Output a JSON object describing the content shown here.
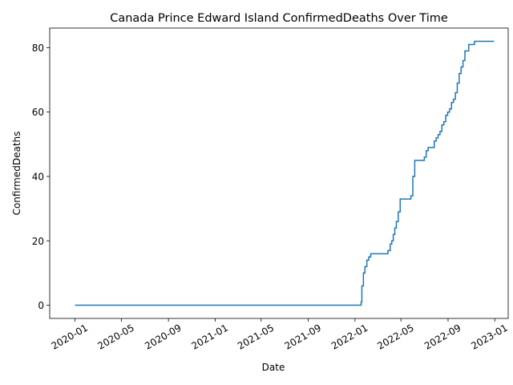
{
  "chart_data": {
    "type": "line",
    "title": "Canada Prince Edward Island ConfirmedDeaths Over Time",
    "xlabel": "Date",
    "ylabel": "ConfirmedDeaths",
    "x_tick_labels": [
      "2020-01",
      "2020-05",
      "2020-09",
      "2021-01",
      "2021-05",
      "2021-09",
      "2022-01",
      "2022-05",
      "2022-09",
      "2023-01"
    ],
    "x_tick_dates": [
      "2020-01-01",
      "2020-05-01",
      "2020-09-01",
      "2021-01-01",
      "2021-05-01",
      "2021-09-01",
      "2022-01-01",
      "2022-05-01",
      "2022-09-01",
      "2023-01-01"
    ],
    "xlim": [
      "2019-10-27",
      "2023-02-05"
    ],
    "y_ticks": [
      0,
      20,
      40,
      60,
      80
    ],
    "ylim": [
      -4.1,
      86.1
    ],
    "grid": false,
    "line_color": "#1f77b4",
    "series": [
      {
        "x": [
          "2020-01-01",
          "2022-01-17",
          "2022-01-19",
          "2022-01-23",
          "2022-01-27",
          "2022-02-01",
          "2022-02-06",
          "2022-02-11",
          "2022-02-16",
          "2022-02-21",
          "2022-03-01",
          "2022-03-15",
          "2022-03-28",
          "2022-04-03",
          "2022-04-07",
          "2022-04-11",
          "2022-04-15",
          "2022-04-19",
          "2022-04-24",
          "2022-04-29",
          "2022-05-04",
          "2022-05-08",
          "2022-05-13",
          "2022-05-27",
          "2022-06-01",
          "2022-06-06",
          "2022-06-10",
          "2022-06-26",
          "2022-07-01",
          "2022-07-06",
          "2022-07-11",
          "2022-07-16",
          "2022-07-27",
          "2022-08-01",
          "2022-08-06",
          "2022-08-11",
          "2022-08-16",
          "2022-08-21",
          "2022-08-26",
          "2022-08-31",
          "2022-09-05",
          "2022-09-10",
          "2022-09-15",
          "2022-09-20",
          "2022-09-25",
          "2022-09-30",
          "2022-10-05",
          "2022-10-10",
          "2022-10-15",
          "2022-10-20",
          "2022-10-25",
          "2022-10-30",
          "2022-11-04",
          "2022-11-09",
          "2022-11-14",
          "2022-11-19",
          "2022-11-30",
          "2022-12-15",
          "2022-12-30"
        ],
        "values": [
          0,
          1,
          6,
          10,
          12,
          14,
          15,
          16,
          16,
          16,
          16,
          16,
          17,
          19,
          20,
          22,
          24,
          26,
          29,
          33,
          33,
          33,
          33,
          34,
          40,
          45,
          45,
          45,
          46,
          48,
          49,
          49,
          51,
          52,
          53,
          54,
          56,
          57,
          59,
          60,
          61,
          63,
          64,
          66,
          69,
          72,
          74,
          76,
          79,
          79,
          81,
          81,
          81,
          82,
          82,
          82,
          82,
          82,
          82
        ]
      }
    ]
  }
}
